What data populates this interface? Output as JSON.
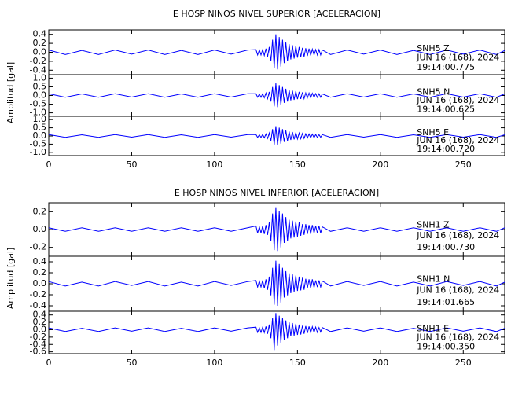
{
  "chart_data": [
    {
      "type": "seismogram",
      "title": "E HOSP NINOS NIVEL SUPERIOR [ACELERACION]",
      "ylabel": "Amplitud [gal]",
      "xlim": [
        0,
        275
      ],
      "xticks": [
        0,
        50,
        100,
        150,
        200,
        250
      ],
      "x": [
        0,
        10,
        20,
        30,
        40,
        50,
        60,
        70,
        80,
        90,
        100,
        110,
        120,
        125,
        126,
        127,
        128,
        129,
        130,
        131,
        132,
        133,
        134,
        135,
        136,
        137,
        138,
        139,
        140,
        141,
        142,
        143,
        144,
        145,
        146,
        147,
        148,
        149,
        150,
        151,
        152,
        153,
        154,
        155,
        156,
        157,
        158,
        159,
        160,
        161,
        162,
        163,
        164,
        165,
        170,
        180,
        190,
        200,
        210,
        220,
        230,
        240,
        250,
        260,
        270,
        275
      ],
      "panels": [
        {
          "station": "SNH5   Z",
          "date": "JUN 16 (168), 2024",
          "time": "19:14:00.775",
          "color": "#0000ff",
          "ylim": [
            -0.5,
            0.5
          ],
          "yticks": [
            0.4,
            0.2,
            {
              "value": 0,
              "label": "0.0"
            },
            -0.2,
            -0.4
          ],
          "values": [
            0.05,
            -0.05,
            0.04,
            -0.05,
            0.05,
            -0.04,
            0.05,
            -0.05,
            0.04,
            -0.05,
            0.05,
            -0.04,
            0.05,
            0.06,
            -0.06,
            0.05,
            -0.06,
            0.06,
            -0.07,
            0.08,
            -0.1,
            0.12,
            -0.2,
            0.28,
            -0.36,
            0.4,
            -0.38,
            0.34,
            -0.32,
            0.28,
            -0.24,
            0.22,
            -0.2,
            0.18,
            -0.16,
            0.16,
            -0.14,
            0.14,
            -0.12,
            0.12,
            -0.11,
            0.1,
            -0.1,
            0.09,
            -0.08,
            0.08,
            -0.07,
            0.07,
            -0.06,
            0.06,
            -0.06,
            0.06,
            -0.06,
            0.05,
            -0.05,
            0.05,
            -0.04,
            0.05,
            -0.05,
            0.04,
            -0.05,
            0.05,
            -0.04,
            0.05,
            -0.05,
            0.04
          ]
        },
        {
          "station": "SNH5   N",
          "date": "JUN 16 (168), 2024",
          "time": "19:14:00.625",
          "color": "#0000ff",
          "ylim": [
            -1.2,
            1.2
          ],
          "yticks": [
            {
              "value": 1,
              "label": "1.0"
            },
            0.5,
            {
              "value": 0,
              "label": "0.0"
            },
            -0.5,
            {
              "value": -1,
              "label": "-1.0"
            }
          ],
          "values": [
            0.1,
            -0.1,
            0.09,
            -0.1,
            0.1,
            -0.09,
            0.1,
            -0.1,
            0.09,
            -0.1,
            0.1,
            -0.09,
            0.1,
            0.1,
            -0.1,
            0.08,
            -0.1,
            0.1,
            -0.13,
            0.14,
            -0.18,
            0.21,
            -0.35,
            0.49,
            -0.63,
            0.7,
            -0.67,
            0.6,
            -0.56,
            0.49,
            -0.42,
            0.39,
            -0.35,
            0.32,
            -0.28,
            0.28,
            -0.25,
            0.25,
            -0.21,
            0.21,
            -0.2,
            0.18,
            -0.18,
            0.15,
            -0.14,
            0.14,
            -0.13,
            0.13,
            -0.11,
            0.11,
            -0.11,
            0.1,
            -0.1,
            0.09,
            -0.1,
            0.1,
            -0.09,
            0.1,
            -0.1,
            0.09,
            -0.1,
            0.1,
            -0.09,
            0.1,
            -0.1,
            0.09
          ]
        },
        {
          "station": "SNH5   E",
          "date": "JUN 16 (168), 2024",
          "time": "19:14:00.720",
          "color": "#0000ff",
          "ylim": [
            -1.2,
            1.2
          ],
          "yticks": [
            {
              "value": 1,
              "label": "1.0"
            },
            0.5,
            {
              "value": 0,
              "label": "0.0"
            },
            -0.5,
            {
              "value": -1,
              "label": "-1.0"
            }
          ],
          "values": [
            0.08,
            -0.08,
            0.07,
            -0.08,
            0.08,
            -0.07,
            0.08,
            -0.08,
            0.07,
            -0.08,
            0.08,
            -0.07,
            0.08,
            0.09,
            -0.09,
            0.07,
            -0.09,
            0.09,
            -0.11,
            0.12,
            -0.15,
            0.18,
            -0.3,
            0.42,
            -0.54,
            0.6,
            -0.57,
            0.51,
            -0.48,
            0.42,
            -0.36,
            0.33,
            -0.3,
            0.27,
            -0.24,
            0.24,
            -0.21,
            0.21,
            -0.18,
            0.18,
            -0.17,
            0.15,
            -0.15,
            0.13,
            -0.12,
            0.12,
            -0.11,
            0.11,
            -0.1,
            0.09,
            -0.09,
            0.08,
            -0.08,
            0.08,
            -0.08,
            0.08,
            -0.07,
            0.08,
            -0.08,
            0.07,
            -0.08,
            0.08,
            -0.07,
            0.08,
            -0.08,
            0.07
          ]
        }
      ]
    },
    {
      "type": "seismogram",
      "title": "E HOSP NINOS NIVEL INFERIOR [ACELERACION]",
      "ylabel": "Amplitud [gal]",
      "xlim": [
        0,
        275
      ],
      "xticks": [
        0,
        50,
        100,
        150,
        200,
        250
      ],
      "x": [
        0,
        10,
        20,
        30,
        40,
        50,
        60,
        70,
        80,
        90,
        100,
        110,
        120,
        125,
        126,
        127,
        128,
        129,
        130,
        131,
        132,
        133,
        134,
        135,
        136,
        137,
        138,
        139,
        140,
        141,
        142,
        143,
        144,
        145,
        146,
        147,
        148,
        149,
        150,
        151,
        152,
        153,
        154,
        155,
        156,
        157,
        158,
        159,
        160,
        161,
        162,
        163,
        164,
        165,
        170,
        180,
        190,
        200,
        210,
        220,
        230,
        240,
        250,
        260,
        270,
        275
      ],
      "panels": [
        {
          "station": "SNH1   Z",
          "date": "JUN 16 (168), 2024",
          "time": "19:14:00.730",
          "color": "#0000ff",
          "ylim": [
            -0.3,
            0.3
          ],
          "yticks": [
            0.2,
            {
              "value": 0,
              "label": "0.0"
            },
            -0.2
          ],
          "values": [
            0.02,
            -0.02,
            0.02,
            -0.02,
            0.02,
            -0.02,
            0.02,
            -0.02,
            0.02,
            -0.02,
            0.02,
            -0.02,
            0.02,
            0.04,
            -0.04,
            0.03,
            -0.04,
            0.04,
            -0.05,
            0.05,
            -0.06,
            0.08,
            -0.13,
            0.18,
            -0.23,
            0.25,
            -0.24,
            0.21,
            -0.2,
            0.18,
            -0.15,
            0.14,
            -0.13,
            0.11,
            -0.1,
            0.1,
            -0.09,
            0.09,
            -0.08,
            0.08,
            -0.07,
            0.06,
            -0.06,
            0.06,
            -0.05,
            0.05,
            -0.05,
            0.05,
            -0.04,
            0.04,
            -0.04,
            0.04,
            -0.04,
            0.03,
            -0.02,
            0.02,
            -0.02,
            0.02,
            -0.02,
            0.02,
            -0.02,
            0.02,
            -0.02,
            0.02,
            -0.02,
            0.02
          ]
        },
        {
          "station": "SNH1   N",
          "date": "JUN 16 (168), 2024",
          "time": "19:14:01.665",
          "color": "#0000ff",
          "ylim": [
            -0.5,
            0.5
          ],
          "yticks": [
            0.4,
            0.2,
            {
              "value": 0,
              "label": "0.0"
            },
            -0.2,
            -0.4
          ],
          "values": [
            0.04,
            -0.04,
            0.03,
            -0.04,
            0.04,
            -0.03,
            0.04,
            -0.04,
            0.03,
            -0.04,
            0.04,
            -0.03,
            0.04,
            0.06,
            -0.06,
            0.05,
            -0.06,
            0.06,
            -0.08,
            0.08,
            -0.11,
            0.13,
            -0.21,
            0.29,
            -0.38,
            0.42,
            -0.4,
            0.36,
            -0.34,
            0.29,
            -0.25,
            0.23,
            -0.21,
            0.19,
            -0.17,
            0.17,
            -0.15,
            0.15,
            -0.13,
            0.13,
            -0.12,
            0.11,
            -0.11,
            0.09,
            -0.08,
            0.08,
            -0.08,
            0.08,
            -0.07,
            0.06,
            -0.06,
            0.06,
            -0.06,
            0.05,
            -0.04,
            0.04,
            -0.03,
            0.04,
            -0.04,
            0.03,
            -0.04,
            0.04,
            -0.03,
            0.04,
            -0.04,
            0.03
          ]
        },
        {
          "station": "SNH1   E",
          "date": "JUN 16 (168), 2024",
          "time": "19:14:00.350",
          "color": "#0000ff",
          "ylim": [
            -0.65,
            0.5
          ],
          "yticks": [
            0.4,
            0.2,
            {
              "value": 0,
              "label": "0.0"
            },
            -0.2,
            -0.4,
            -0.6
          ],
          "values": [
            0.05,
            -0.05,
            0.04,
            -0.05,
            0.05,
            -0.04,
            0.05,
            -0.05,
            0.04,
            -0.05,
            0.05,
            -0.04,
            0.05,
            0.07,
            -0.07,
            0.05,
            -0.07,
            0.07,
            -0.08,
            0.09,
            -0.11,
            0.14,
            -0.23,
            0.32,
            -0.55,
            0.45,
            -0.43,
            0.38,
            -0.36,
            0.32,
            -0.27,
            0.25,
            -0.23,
            0.2,
            -0.18,
            0.18,
            -0.16,
            0.16,
            -0.14,
            0.14,
            -0.13,
            0.11,
            -0.11,
            0.1,
            -0.09,
            0.09,
            -0.08,
            0.08,
            -0.07,
            0.07,
            -0.07,
            0.06,
            -0.06,
            0.06,
            -0.05,
            0.05,
            -0.04,
            0.05,
            -0.05,
            0.04,
            -0.05,
            0.05,
            -0.04,
            0.05,
            -0.05,
            0.04
          ]
        }
      ]
    }
  ]
}
